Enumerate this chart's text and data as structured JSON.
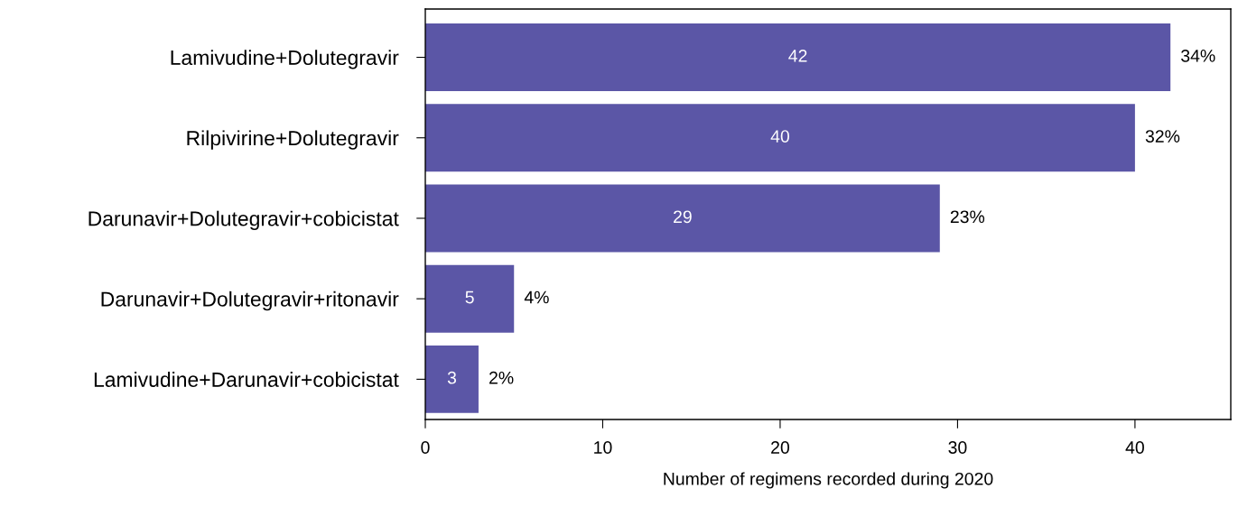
{
  "chart_data": {
    "type": "bar",
    "orientation": "horizontal",
    "xlabel": "Number of regimens recorded during 2020",
    "categories": [
      "Lamivudine+Dolutegravir",
      "Rilpivirine+Dolutegravir",
      "Darunavir+Dolutegravir+cobicistat",
      "Darunavir+Dolutegravir+ritonavir",
      "Lamivudine+Darunavir+cobicistat"
    ],
    "values": [
      42,
      40,
      29,
      5,
      3
    ],
    "color": "#5b56a6",
    "data_labels": true,
    "xlim": [
      0,
      45.4
    ],
    "xticks": [
      0,
      10,
      20,
      30,
      40
    ],
    "grid": false,
    "legend": false,
    "annotations": [
      {
        "text": "34%",
        "x": 42,
        "y": "Lamivudine+Dolutegravir"
      },
      {
        "text": "32%",
        "x": 40,
        "y": "Rilpivirine+Dolutegravir"
      },
      {
        "text": "23%",
        "x": 29,
        "y": "Darunavir+Dolutegravir+cobicistat"
      },
      {
        "text": "4%",
        "x": 5,
        "y": "Darunavir+Dolutegravir+ritonavir"
      },
      {
        "text": "2%",
        "x": 3,
        "y": "Lamivudine+Darunavir+cobicistat"
      }
    ]
  }
}
